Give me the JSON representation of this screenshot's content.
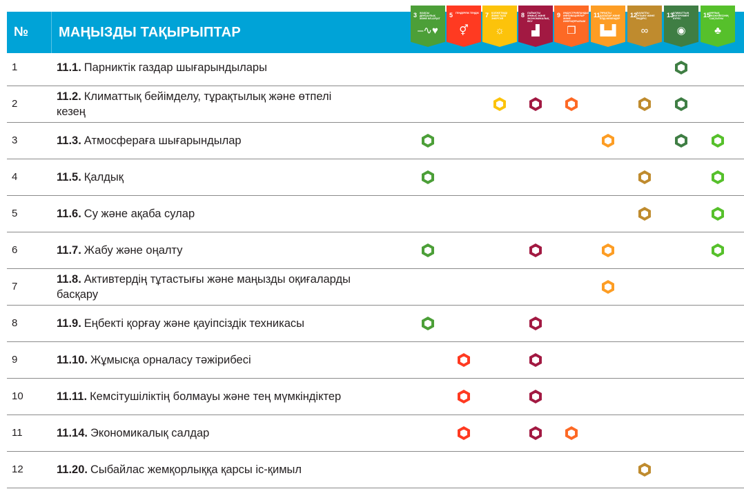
{
  "header": {
    "num_label": "№",
    "title": "МАҢЫЗДЫ ТАҚЫРЫПТАР"
  },
  "sdgs": [
    {
      "id": "3",
      "label": "Жақсы денсаулық және әл-ауқат",
      "color": "#4c9f38",
      "icon": "heartbeat-icon",
      "glyph": "–∿♥"
    },
    {
      "id": "5",
      "label": "Гендерлік теңдік",
      "color": "#ff3a21",
      "icon": "gender-icon",
      "glyph": "⚥"
    },
    {
      "id": "7",
      "label": "Қолжетімді және таза энергия",
      "color": "#fcc30b",
      "icon": "sun-icon",
      "glyph": "☼"
    },
    {
      "id": "8",
      "label": "Лайықты жұмыс және экономикалық өсу",
      "color": "#a21942",
      "icon": "growth-chart-icon",
      "glyph": "▟"
    },
    {
      "id": "9",
      "label": "Индустрияландыру, инновациялар және инфрақұрылым",
      "color": "#fd6925",
      "icon": "cubes-icon",
      "glyph": "❒"
    },
    {
      "id": "11",
      "label": "Тұрақты қалалар және елді мекендер",
      "color": "#fd9d24",
      "icon": "city-icon",
      "glyph": "▙▟"
    },
    {
      "id": "12",
      "label": "Жауапты тұтыну және өндіріс",
      "color": "#bf8b2e",
      "icon": "infinity-icon",
      "glyph": "∞"
    },
    {
      "id": "13",
      "label": "Климаттың өзгеруімен күрес",
      "color": "#3f7e44",
      "icon": "eye-icon",
      "glyph": "◉"
    },
    {
      "id": "15",
      "label": "Құрлық экожүйесінің сақталуы",
      "color": "#56c02b",
      "icon": "tree-icon",
      "glyph": "♣"
    }
  ],
  "rows": [
    {
      "num": "1",
      "code": "11.1.",
      "text": "Парниктік газдар шығарындылары",
      "marks": [
        "13"
      ]
    },
    {
      "num": "2",
      "code": "11.2.",
      "text": "Климаттық бейімделу, тұрақтылық және өтпелі кезең",
      "marks": [
        "7",
        "8",
        "9",
        "12",
        "13"
      ]
    },
    {
      "num": "3",
      "code": "11.3.",
      "text": "Атмосфераға шығарындылар",
      "marks": [
        "3",
        "11",
        "13",
        "15"
      ]
    },
    {
      "num": "4",
      "code": "11.5.",
      "text": "Қалдық",
      "marks": [
        "3",
        "12",
        "15"
      ]
    },
    {
      "num": "5",
      "code": "11.6.",
      "text": "Су және ақаба сулар",
      "marks": [
        "12",
        "15"
      ]
    },
    {
      "num": "6",
      "code": "11.7.",
      "text": "Жабу және оңалту",
      "marks": [
        "3",
        "8",
        "11",
        "15"
      ]
    },
    {
      "num": "7",
      "code": "11.8.",
      "text": "Активтердің тұтастығы және маңызды оқиғаларды басқару",
      "marks": [
        "11"
      ]
    },
    {
      "num": "8",
      "code": "11.9.",
      "text": "Еңбекті қорғау және қауіпсіздік техникасы",
      "marks": [
        "3",
        "8"
      ]
    },
    {
      "num": "9",
      "code": "11.10.",
      "text": "Жұмысқа орналасу тәжірибесі",
      "marks": [
        "5",
        "8"
      ]
    },
    {
      "num": "10",
      "code": "11.11.",
      "text": "Кемсітушіліктің болмауы және тең мүмкіндіктер",
      "marks": [
        "5",
        "8"
      ]
    },
    {
      "num": "11",
      "code": "11.14.",
      "text": "Экономикалық салдар",
      "marks": [
        "5",
        "8",
        "9"
      ]
    },
    {
      "num": "12",
      "code": "11.20.",
      "text": "Сыбайлас жемқорлыққа қарсы іс-қимыл",
      "marks": [
        "12"
      ]
    }
  ]
}
